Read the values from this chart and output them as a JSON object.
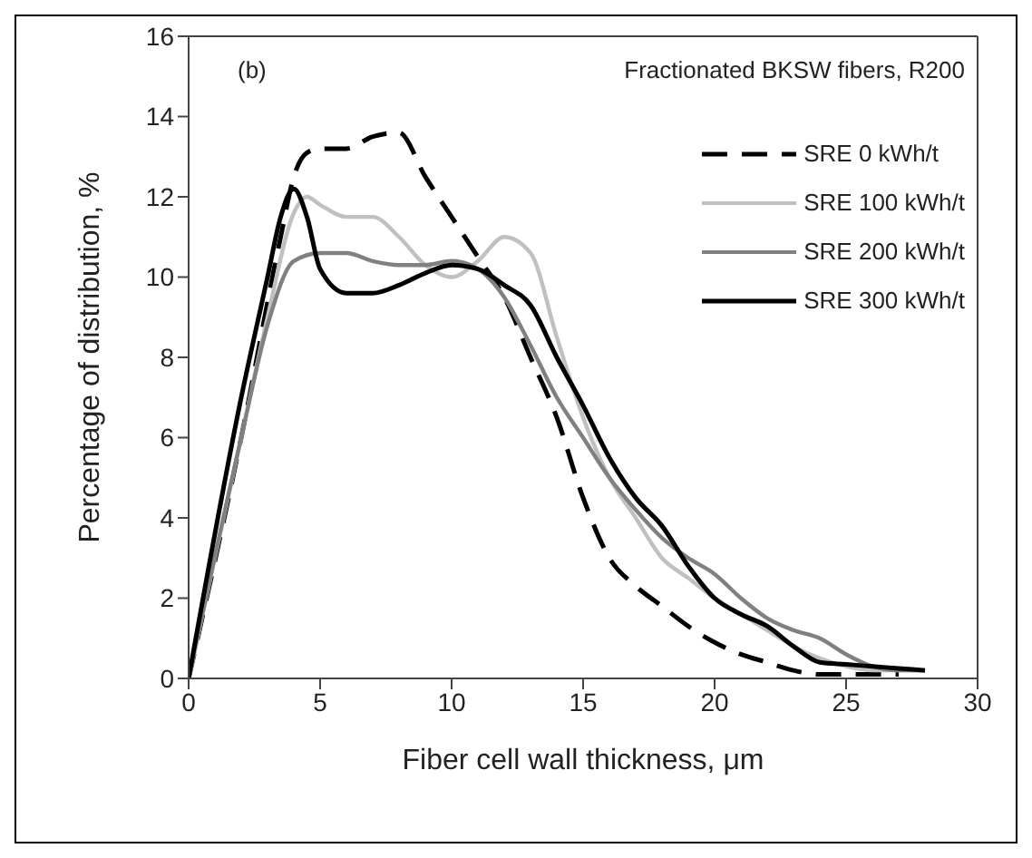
{
  "chart_data": {
    "type": "line",
    "xlabel": "Fiber cell wall thickness, μm",
    "ylabel": "Percentage of distribution, %",
    "annotations": [
      "(b)",
      "Fractionated BKSW fibers, R200"
    ],
    "xlim": [
      0,
      30
    ],
    "xticks": [
      0,
      5,
      10,
      15,
      20,
      25,
      30
    ],
    "ylim": [
      0,
      16
    ],
    "yticks": [
      0,
      2,
      4,
      6,
      8,
      10,
      12,
      14,
      16
    ],
    "legend": "top right",
    "marker": "none",
    "series": [
      {
        "name": "SRE 0 kWh/t",
        "color": "#000000",
        "line_style": "dashed",
        "x": [
          0,
          2,
          3.5,
          4,
          4.5,
          5,
          6,
          7,
          8,
          9,
          10,
          11,
          12,
          13,
          14,
          15,
          16,
          17,
          18,
          19,
          20,
          21,
          22,
          23,
          24,
          25,
          26,
          27
        ],
        "values": [
          0,
          6,
          11,
          12.5,
          13.1,
          13.2,
          13.2,
          13.5,
          13.6,
          12.5,
          11.5,
          10.5,
          9.5,
          8,
          6.5,
          4.5,
          3,
          2.3,
          1.8,
          1.3,
          0.9,
          0.6,
          0.4,
          0.2,
          0.1,
          0.1,
          0.1,
          0.1
        ]
      },
      {
        "name": "SRE 100 kWh/t",
        "color": "#c0c0c0",
        "line_style": "solid",
        "x": [
          0,
          2,
          3,
          4,
          4.5,
          5,
          6,
          7,
          8,
          9,
          10,
          11,
          12,
          13,
          14,
          15,
          16,
          17,
          18,
          19,
          20,
          21,
          22,
          23,
          24,
          25,
          26,
          27,
          28
        ],
        "values": [
          0,
          6,
          9,
          11.6,
          12,
          11.8,
          11.5,
          11.5,
          11,
          10.3,
          10,
          10.4,
          11,
          10.6,
          8.5,
          6.5,
          5,
          4,
          3,
          2.5,
          2,
          1.6,
          1.2,
          0.8,
          0.5,
          0.3,
          0.2,
          0.2,
          0.2
        ]
      },
      {
        "name": "SRE 200 kWh/t",
        "color": "#808080",
        "line_style": "solid",
        "x": [
          0,
          2,
          3,
          4,
          5,
          6,
          7,
          8,
          9,
          10,
          11,
          12,
          13,
          14,
          15,
          16,
          17,
          18,
          19,
          20,
          21,
          22,
          23,
          24,
          25,
          26,
          27,
          28
        ],
        "values": [
          0,
          6,
          8.8,
          10.4,
          10.6,
          10.6,
          10.4,
          10.3,
          10.3,
          10.4,
          10.2,
          9.5,
          8.3,
          7,
          6,
          5,
          4.2,
          3.5,
          3,
          2.6,
          2,
          1.5,
          1.2,
          1,
          0.6,
          0.3,
          0.2,
          0.2
        ]
      },
      {
        "name": "SRE 300 kWh/t",
        "color": "#000000",
        "line_style": "solid",
        "x": [
          0,
          2,
          3,
          3.5,
          4,
          4.5,
          5,
          6,
          7,
          8,
          9,
          10,
          11,
          12,
          13,
          14,
          15,
          16,
          17,
          18,
          19,
          20,
          21,
          22,
          23,
          24,
          25,
          26,
          27,
          28
        ],
        "values": [
          0,
          7,
          10,
          11.5,
          12.2,
          11.5,
          10.2,
          9.6,
          9.6,
          9.8,
          10.1,
          10.3,
          10.2,
          9.8,
          9.3,
          8,
          6.8,
          5.5,
          4.5,
          3.8,
          2.8,
          2,
          1.6,
          1.3,
          0.8,
          0.4,
          0.35,
          0.3,
          0.25,
          0.2
        ]
      }
    ]
  }
}
